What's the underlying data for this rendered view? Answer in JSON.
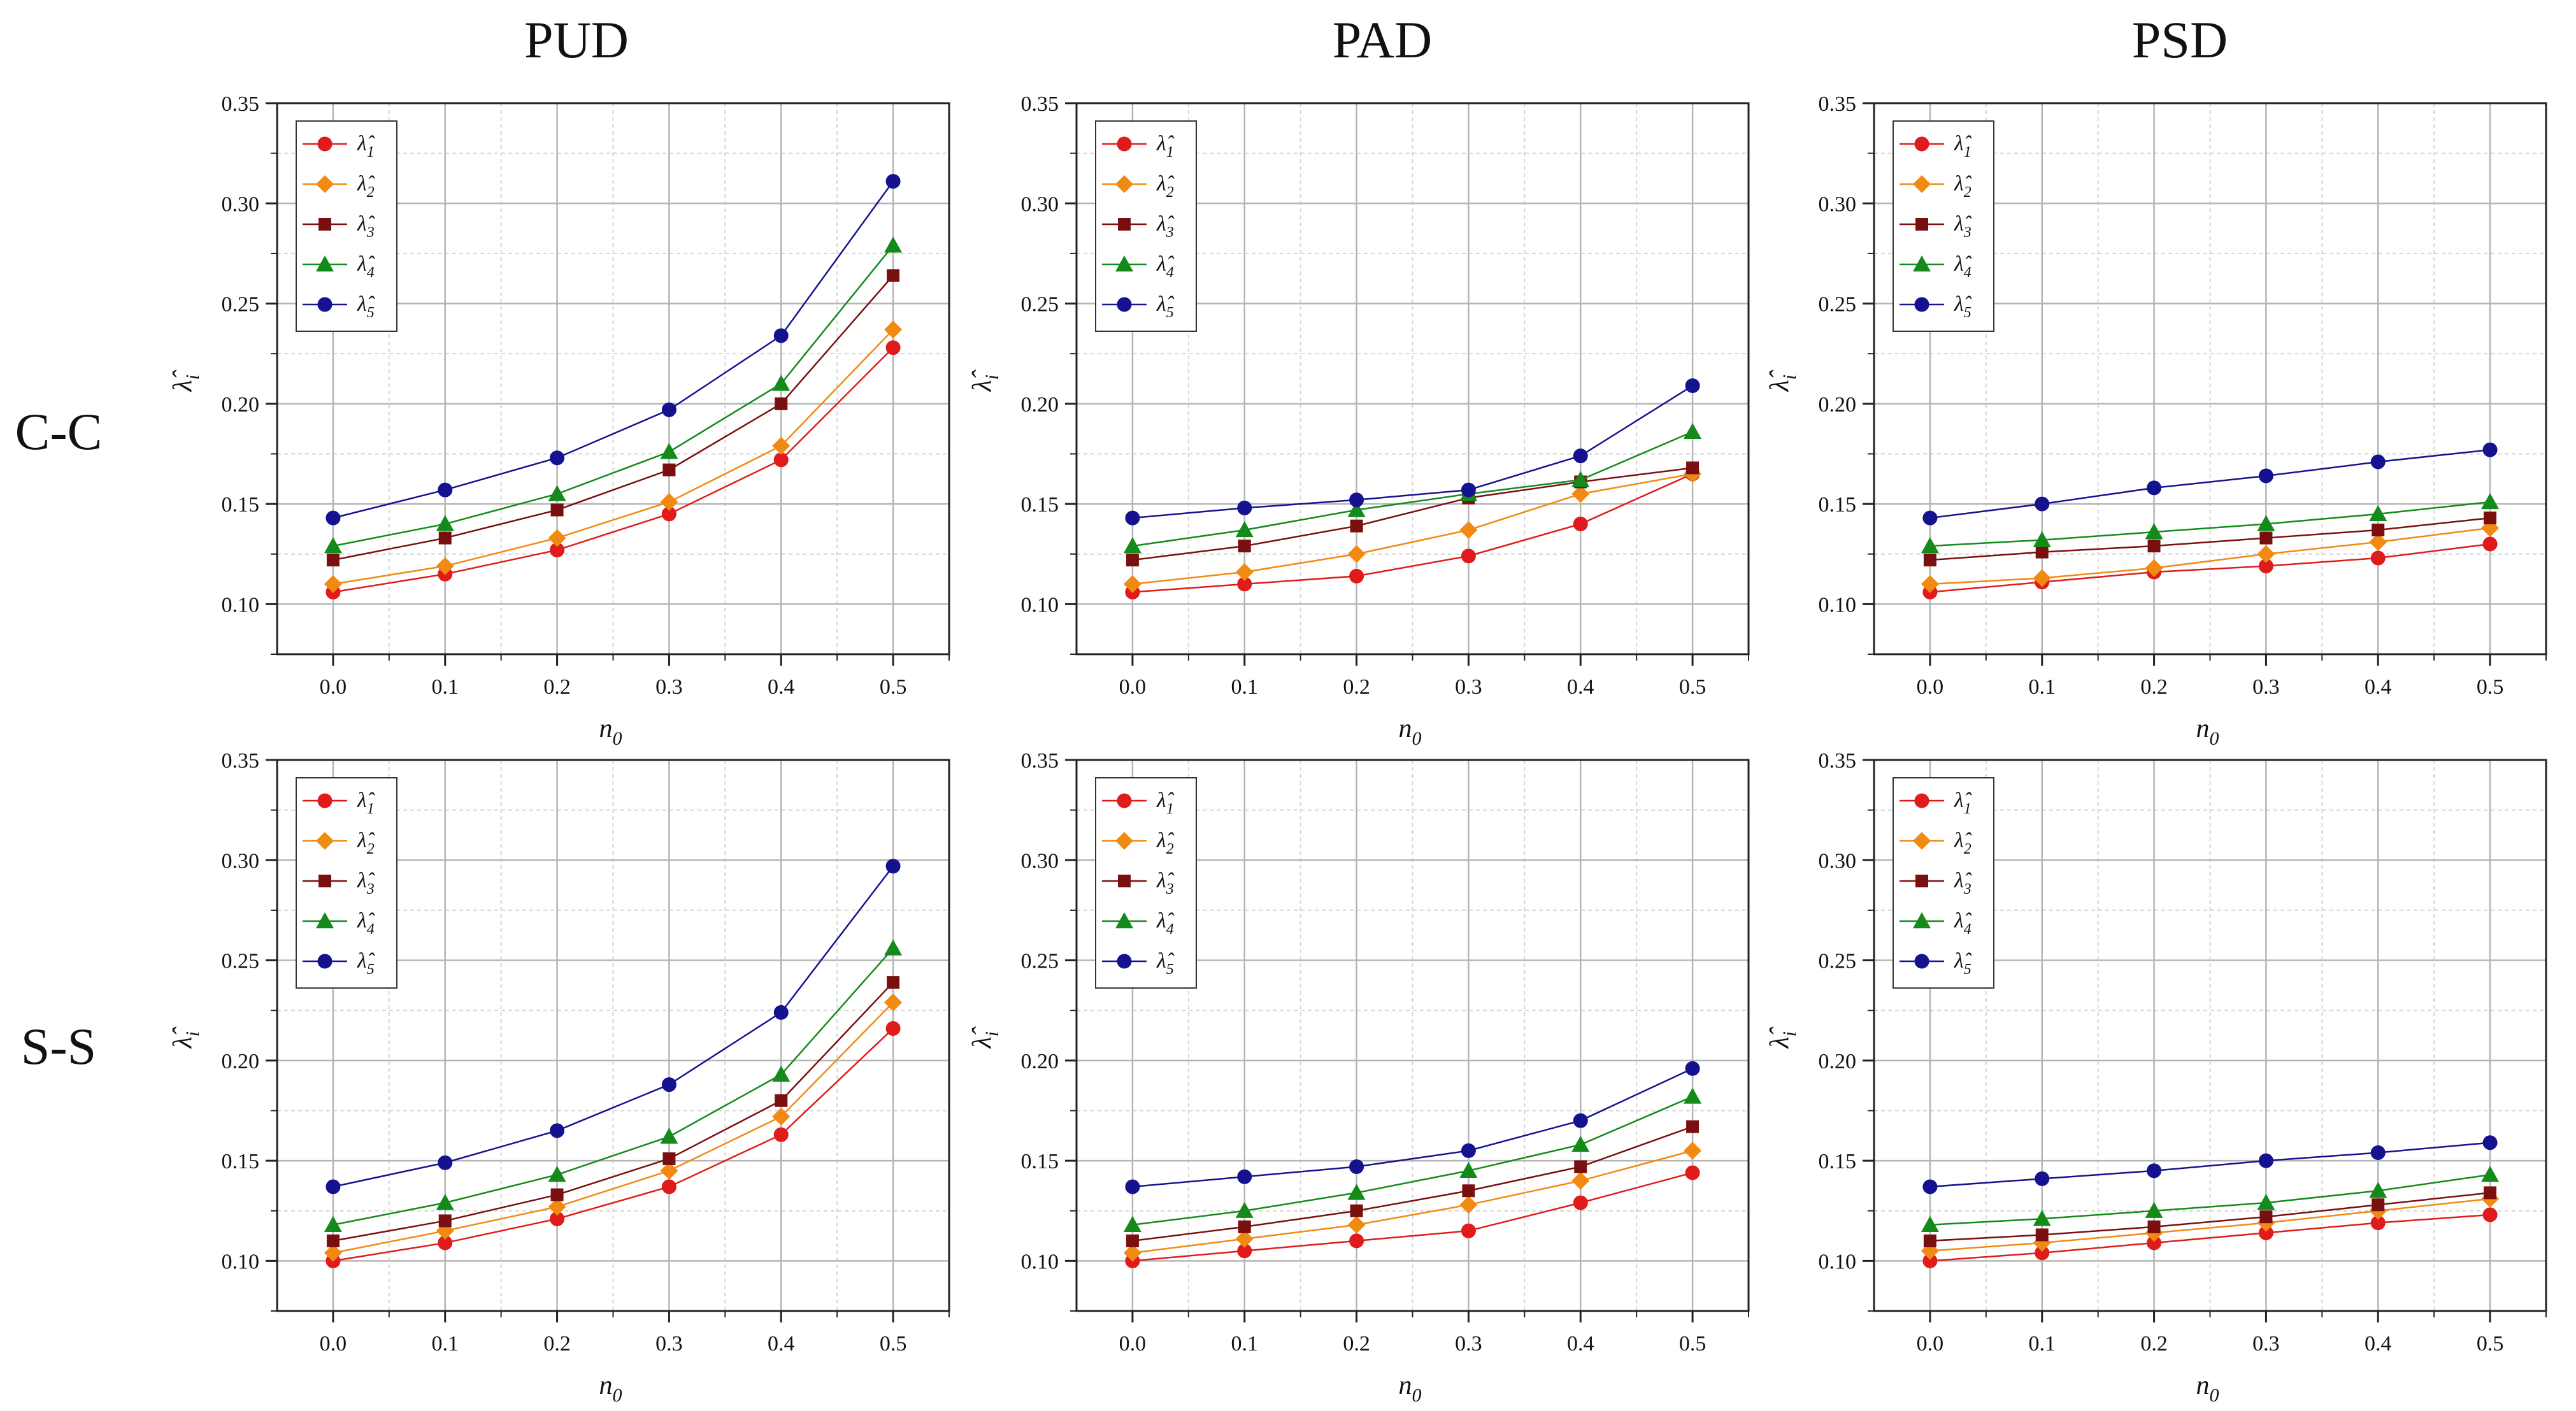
{
  "figure": {
    "column_titles": [
      "PUD",
      "PAD",
      "PSD"
    ],
    "row_labels": [
      "C-C",
      "S-S"
    ],
    "colors": {
      "lambda1": "#e01b1b",
      "lambda2": "#f08a12",
      "lambda3": "#7a0f0f",
      "lambda4": "#138a1a",
      "lambda5": "#14128f",
      "grid_major": "#b5b5b5",
      "grid_minor": "#d6d6d6",
      "axis": "#222222"
    }
  },
  "chart_data": [
    {
      "type": "line",
      "row": "C-C",
      "column": "PUD",
      "x": [
        0.0,
        0.1,
        0.2,
        0.3,
        0.4,
        0.5
      ],
      "xlabel": "n0",
      "ylabel": "λ̂i",
      "xlim": [
        -0.05,
        0.55
      ],
      "ylim": [
        0.075,
        0.35
      ],
      "xticks": [
        "0.0",
        "0.1",
        "0.2",
        "0.3",
        "0.4",
        "0.5"
      ],
      "yticks": [
        "0.10",
        "0.15",
        "0.20",
        "0.25",
        "0.30",
        "0.35"
      ],
      "legend_position": "top-left",
      "series": [
        {
          "name": "λ̂1",
          "marker": "circle",
          "values": [
            0.106,
            0.115,
            0.127,
            0.145,
            0.172,
            0.228
          ]
        },
        {
          "name": "λ̂2",
          "marker": "diamond",
          "values": [
            0.11,
            0.119,
            0.133,
            0.151,
            0.179,
            0.237
          ]
        },
        {
          "name": "λ̂3",
          "marker": "square",
          "values": [
            0.122,
            0.133,
            0.147,
            0.167,
            0.2,
            0.264
          ]
        },
        {
          "name": "λ̂4",
          "marker": "triangle",
          "values": [
            0.129,
            0.14,
            0.155,
            0.176,
            0.21,
            0.279
          ]
        },
        {
          "name": "λ̂5",
          "marker": "circle",
          "values": [
            0.143,
            0.157,
            0.173,
            0.197,
            0.234,
            0.311
          ]
        }
      ]
    },
    {
      "type": "line",
      "row": "C-C",
      "column": "PAD",
      "x": [
        0.0,
        0.1,
        0.2,
        0.3,
        0.4,
        0.5
      ],
      "xlabel": "n0",
      "ylabel": "λ̂i",
      "xlim": [
        -0.05,
        0.55
      ],
      "ylim": [
        0.075,
        0.35
      ],
      "xticks": [
        "0.0",
        "0.1",
        "0.2",
        "0.3",
        "0.4",
        "0.5"
      ],
      "yticks": [
        "0.10",
        "0.15",
        "0.20",
        "0.25",
        "0.30",
        "0.35"
      ],
      "legend_position": "top-left",
      "series": [
        {
          "name": "λ̂1",
          "marker": "circle",
          "values": [
            0.106,
            0.11,
            0.114,
            0.124,
            0.14,
            0.165
          ]
        },
        {
          "name": "λ̂2",
          "marker": "diamond",
          "values": [
            0.11,
            0.116,
            0.125,
            0.137,
            0.155,
            0.165
          ]
        },
        {
          "name": "λ̂3",
          "marker": "square",
          "values": [
            0.122,
            0.129,
            0.139,
            0.153,
            0.161,
            0.168
          ]
        },
        {
          "name": "λ̂4",
          "marker": "triangle",
          "values": [
            0.129,
            0.137,
            0.147,
            0.155,
            0.162,
            0.186
          ]
        },
        {
          "name": "λ̂5",
          "marker": "circle",
          "values": [
            0.143,
            0.148,
            0.152,
            0.157,
            0.174,
            0.209
          ]
        }
      ]
    },
    {
      "type": "line",
      "row": "C-C",
      "column": "PSD",
      "x": [
        0.0,
        0.1,
        0.2,
        0.3,
        0.4,
        0.5
      ],
      "xlabel": "n0",
      "ylabel": "λ̂i",
      "xlim": [
        -0.05,
        0.55
      ],
      "ylim": [
        0.075,
        0.35
      ],
      "xticks": [
        "0.0",
        "0.1",
        "0.2",
        "0.3",
        "0.4",
        "0.5"
      ],
      "yticks": [
        "0.10",
        "0.15",
        "0.20",
        "0.25",
        "0.30",
        "0.35"
      ],
      "legend_position": "top-left",
      "series": [
        {
          "name": "λ̂1",
          "marker": "circle",
          "values": [
            0.106,
            0.111,
            0.116,
            0.119,
            0.123,
            0.13
          ]
        },
        {
          "name": "λ̂2",
          "marker": "diamond",
          "values": [
            0.11,
            0.113,
            0.118,
            0.125,
            0.131,
            0.138
          ]
        },
        {
          "name": "λ̂3",
          "marker": "square",
          "values": [
            0.122,
            0.126,
            0.129,
            0.133,
            0.137,
            0.143
          ]
        },
        {
          "name": "λ̂4",
          "marker": "triangle",
          "values": [
            0.129,
            0.132,
            0.136,
            0.14,
            0.145,
            0.151
          ]
        },
        {
          "name": "λ̂5",
          "marker": "circle",
          "values": [
            0.143,
            0.15,
            0.158,
            0.164,
            0.171,
            0.177
          ]
        }
      ]
    },
    {
      "type": "line",
      "row": "S-S",
      "column": "PUD",
      "x": [
        0.0,
        0.1,
        0.2,
        0.3,
        0.4,
        0.5
      ],
      "xlabel": "n0",
      "ylabel": "λ̂i",
      "xlim": [
        -0.05,
        0.55
      ],
      "ylim": [
        0.075,
        0.35
      ],
      "xticks": [
        "0.0",
        "0.1",
        "0.2",
        "0.3",
        "0.4",
        "0.5"
      ],
      "yticks": [
        "0.10",
        "0.15",
        "0.20",
        "0.25",
        "0.30",
        "0.35"
      ],
      "legend_position": "top-left",
      "series": [
        {
          "name": "λ̂1",
          "marker": "circle",
          "values": [
            0.1,
            0.109,
            0.121,
            0.137,
            0.163,
            0.216
          ]
        },
        {
          "name": "λ̂2",
          "marker": "diamond",
          "values": [
            0.104,
            0.115,
            0.127,
            0.145,
            0.172,
            0.229
          ]
        },
        {
          "name": "λ̂3",
          "marker": "square",
          "values": [
            0.11,
            0.12,
            0.133,
            0.151,
            0.18,
            0.239
          ]
        },
        {
          "name": "λ̂4",
          "marker": "triangle",
          "values": [
            0.118,
            0.129,
            0.143,
            0.162,
            0.193,
            0.256
          ]
        },
        {
          "name": "λ̂5",
          "marker": "circle",
          "values": [
            0.137,
            0.149,
            0.165,
            0.188,
            0.224,
            0.297
          ]
        }
      ]
    },
    {
      "type": "line",
      "row": "S-S",
      "column": "PAD",
      "x": [
        0.0,
        0.1,
        0.2,
        0.3,
        0.4,
        0.5
      ],
      "xlabel": "n0",
      "ylabel": "λ̂i",
      "xlim": [
        -0.05,
        0.55
      ],
      "ylim": [
        0.075,
        0.35
      ],
      "xticks": [
        "0.0",
        "0.1",
        "0.2",
        "0.3",
        "0.4",
        "0.5"
      ],
      "yticks": [
        "0.10",
        "0.15",
        "0.20",
        "0.25",
        "0.30",
        "0.35"
      ],
      "legend_position": "top-left",
      "series": [
        {
          "name": "λ̂1",
          "marker": "circle",
          "values": [
            0.1,
            0.105,
            0.11,
            0.115,
            0.129,
            0.144
          ]
        },
        {
          "name": "λ̂2",
          "marker": "diamond",
          "values": [
            0.104,
            0.111,
            0.118,
            0.128,
            0.14,
            0.155
          ]
        },
        {
          "name": "λ̂3",
          "marker": "square",
          "values": [
            0.11,
            0.117,
            0.125,
            0.135,
            0.147,
            0.167
          ]
        },
        {
          "name": "λ̂4",
          "marker": "triangle",
          "values": [
            0.118,
            0.125,
            0.134,
            0.145,
            0.158,
            0.182
          ]
        },
        {
          "name": "λ̂5",
          "marker": "circle",
          "values": [
            0.137,
            0.142,
            0.147,
            0.155,
            0.17,
            0.196
          ]
        }
      ]
    },
    {
      "type": "line",
      "row": "S-S",
      "column": "PSD",
      "x": [
        0.0,
        0.1,
        0.2,
        0.3,
        0.4,
        0.5
      ],
      "xlabel": "n0",
      "ylabel": "λ̂i",
      "xlim": [
        -0.05,
        0.55
      ],
      "ylim": [
        0.075,
        0.35
      ],
      "xticks": [
        "0.0",
        "0.1",
        "0.2",
        "0.3",
        "0.4",
        "0.5"
      ],
      "yticks": [
        "0.10",
        "0.15",
        "0.20",
        "0.25",
        "0.30",
        "0.35"
      ],
      "legend_position": "top-left",
      "series": [
        {
          "name": "λ̂1",
          "marker": "circle",
          "values": [
            0.1,
            0.104,
            0.109,
            0.114,
            0.119,
            0.123
          ]
        },
        {
          "name": "λ̂2",
          "marker": "diamond",
          "values": [
            0.105,
            0.109,
            0.114,
            0.119,
            0.125,
            0.131
          ]
        },
        {
          "name": "λ̂3",
          "marker": "square",
          "values": [
            0.11,
            0.113,
            0.117,
            0.122,
            0.128,
            0.134
          ]
        },
        {
          "name": "λ̂4",
          "marker": "triangle",
          "values": [
            0.118,
            0.121,
            0.125,
            0.129,
            0.135,
            0.143
          ]
        },
        {
          "name": "λ̂5",
          "marker": "circle",
          "values": [
            0.137,
            0.141,
            0.145,
            0.15,
            0.154,
            0.159
          ]
        }
      ]
    }
  ]
}
